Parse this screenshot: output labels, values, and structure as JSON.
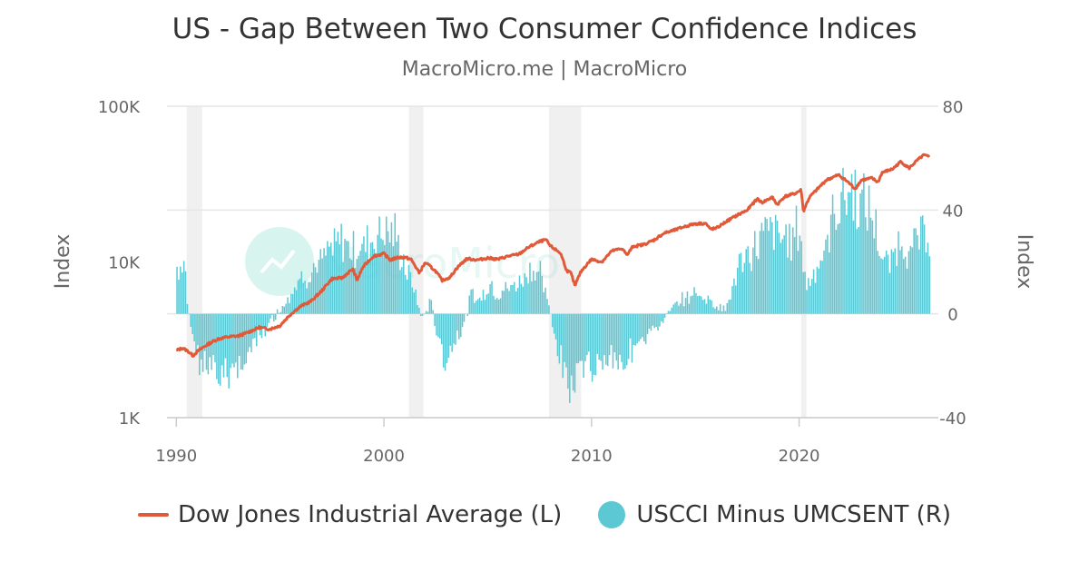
{
  "title": "US - Gap Between Two Consumer Confidence Indices",
  "subtitle": "MacroMicro.me | MacroMicro",
  "watermark": "MacroMicro",
  "colors": {
    "dow": "#e05a3a",
    "gap": "#5bc8d4",
    "recession": "#f0f0f0",
    "grid": "#e6e6e6"
  },
  "legend": [
    {
      "label": "Dow Jones Industrial Average (L)",
      "color": "#e05a3a",
      "marker": "line"
    },
    {
      "label": "USCCI Minus UMCSENT (R)",
      "color": "#5bc8d4",
      "marker": "circle"
    }
  ],
  "chart_data": {
    "type": "line+bar",
    "x_ticks": [
      "1990",
      "2000",
      "2010",
      "2020"
    ],
    "x_range": [
      1989.9,
      2026.4
    ],
    "left_axis": {
      "label": "Index",
      "scale": "log",
      "range": [
        1000,
        100000
      ],
      "ticks": [
        "1K",
        "10K",
        "100K"
      ],
      "tick_values": [
        1000,
        10000,
        100000
      ]
    },
    "right_axis": {
      "label": "Index",
      "range": [
        -40,
        80
      ],
      "ticks": [
        "-40",
        "0",
        "40",
        "80"
      ],
      "tick_values": [
        -40,
        0,
        40,
        80
      ]
    },
    "recessions": [
      [
        1990.5,
        1991.25
      ],
      [
        2001.2,
        2001.9
      ],
      [
        2007.95,
        2009.5
      ],
      [
        2020.1,
        2020.35
      ]
    ],
    "series": [
      {
        "name": "Dow Jones Industrial Average (L)",
        "axis": "left",
        "kind": "line",
        "points": [
          [
            1990.0,
            2700
          ],
          [
            1990.3,
            2800
          ],
          [
            1990.6,
            2650
          ],
          [
            1990.8,
            2500
          ],
          [
            1991.0,
            2650
          ],
          [
            1991.5,
            2950
          ],
          [
            1992.0,
            3200
          ],
          [
            1992.5,
            3300
          ],
          [
            1993.0,
            3350
          ],
          [
            1993.5,
            3550
          ],
          [
            1994.0,
            3800
          ],
          [
            1994.5,
            3700
          ],
          [
            1995.0,
            3900
          ],
          [
            1995.5,
            4600
          ],
          [
            1996.0,
            5200
          ],
          [
            1996.5,
            5600
          ],
          [
            1997.0,
            6500
          ],
          [
            1997.5,
            7800
          ],
          [
            1998.0,
            7900
          ],
          [
            1998.5,
            9000
          ],
          [
            1998.7,
            7600
          ],
          [
            1999.0,
            9300
          ],
          [
            1999.5,
            10900
          ],
          [
            2000.0,
            11300
          ],
          [
            2000.3,
            10300
          ],
          [
            2000.7,
            10700
          ],
          [
            2001.0,
            10700
          ],
          [
            2001.3,
            10400
          ],
          [
            2001.7,
            8500
          ],
          [
            2002.0,
            9900
          ],
          [
            2002.5,
            8700
          ],
          [
            2002.8,
            7600
          ],
          [
            2003.2,
            8000
          ],
          [
            2003.5,
            9100
          ],
          [
            2004.0,
            10500
          ],
          [
            2004.5,
            10300
          ],
          [
            2005.0,
            10600
          ],
          [
            2005.5,
            10400
          ],
          [
            2006.0,
            10900
          ],
          [
            2006.5,
            11200
          ],
          [
            2007.0,
            12500
          ],
          [
            2007.5,
            13500
          ],
          [
            2007.8,
            13900
          ],
          [
            2008.0,
            12700
          ],
          [
            2008.5,
            11400
          ],
          [
            2008.8,
            8800
          ],
          [
            2009.0,
            8500
          ],
          [
            2009.2,
            7000
          ],
          [
            2009.5,
            8700
          ],
          [
            2010.0,
            10400
          ],
          [
            2010.5,
            10000
          ],
          [
            2011.0,
            11800
          ],
          [
            2011.5,
            12200
          ],
          [
            2011.7,
            11000
          ],
          [
            2012.0,
            12600
          ],
          [
            2012.5,
            12900
          ],
          [
            2013.0,
            13800
          ],
          [
            2013.5,
            15300
          ],
          [
            2014.0,
            16000
          ],
          [
            2014.5,
            16900
          ],
          [
            2015.0,
            17600
          ],
          [
            2015.5,
            17700
          ],
          [
            2015.7,
            16300
          ],
          [
            2016.0,
            16400
          ],
          [
            2016.5,
            18200
          ],
          [
            2017.0,
            19900
          ],
          [
            2017.5,
            21500
          ],
          [
            2018.0,
            25500
          ],
          [
            2018.2,
            24000
          ],
          [
            2018.7,
            26000
          ],
          [
            2018.95,
            23300
          ],
          [
            2019.3,
            26300
          ],
          [
            2019.8,
            27500
          ],
          [
            2020.1,
            29000
          ],
          [
            2020.2,
            21000
          ],
          [
            2020.5,
            26000
          ],
          [
            2020.9,
            29500
          ],
          [
            2021.3,
            33500
          ],
          [
            2021.9,
            36200
          ],
          [
            2022.3,
            33000
          ],
          [
            2022.7,
            29500
          ],
          [
            2023.0,
            33500
          ],
          [
            2023.5,
            34500
          ],
          [
            2023.8,
            32500
          ],
          [
            2024.0,
            37500
          ],
          [
            2024.5,
            39500
          ],
          [
            2024.9,
            44000
          ],
          [
            2025.3,
            40000
          ],
          [
            2025.7,
            45000
          ],
          [
            2026.0,
            48500
          ],
          [
            2026.3,
            47000
          ]
        ]
      },
      {
        "name": "USCCI Minus UMCSENT (R)",
        "axis": "right",
        "kind": "bar",
        "points": [
          [
            1990.0,
            18
          ],
          [
            1990.4,
            20
          ],
          [
            1990.5,
            5
          ],
          [
            1990.8,
            -10
          ],
          [
            1991.1,
            -18
          ],
          [
            1991.5,
            -22
          ],
          [
            1992.0,
            -25
          ],
          [
            1992.5,
            -22
          ],
          [
            1993.0,
            -20
          ],
          [
            1993.5,
            -15
          ],
          [
            1994.0,
            -10
          ],
          [
            1994.4,
            -4
          ],
          [
            1994.8,
            0
          ],
          [
            1995.2,
            5
          ],
          [
            1995.6,
            10
          ],
          [
            1996.0,
            14
          ],
          [
            1996.5,
            17
          ],
          [
            1997.0,
            20
          ],
          [
            1997.5,
            25
          ],
          [
            1998.0,
            28
          ],
          [
            1998.5,
            25
          ],
          [
            1999.0,
            26
          ],
          [
            1999.5,
            30
          ],
          [
            2000.0,
            33
          ],
          [
            2000.5,
            30
          ],
          [
            2001.0,
            18
          ],
          [
            2001.4,
            10
          ],
          [
            2001.8,
            -2
          ],
          [
            2002.2,
            5
          ],
          [
            2002.6,
            -10
          ],
          [
            2002.9,
            -20
          ],
          [
            2003.3,
            -12
          ],
          [
            2003.8,
            -5
          ],
          [
            2004.2,
            8
          ],
          [
            2004.6,
            5
          ],
          [
            2005.0,
            12
          ],
          [
            2005.5,
            8
          ],
          [
            2006.0,
            10
          ],
          [
            2006.5,
            12
          ],
          [
            2007.0,
            18
          ],
          [
            2007.5,
            15
          ],
          [
            2007.9,
            3
          ],
          [
            2008.3,
            -15
          ],
          [
            2008.7,
            -25
          ],
          [
            2009.0,
            -28
          ],
          [
            2009.5,
            -22
          ],
          [
            2010.0,
            -20
          ],
          [
            2010.5,
            -18
          ],
          [
            2011.0,
            -15
          ],
          [
            2011.5,
            -20
          ],
          [
            2012.0,
            -12
          ],
          [
            2012.5,
            -10
          ],
          [
            2013.0,
            -6
          ],
          [
            2013.5,
            -2
          ],
          [
            2014.0,
            3
          ],
          [
            2014.5,
            6
          ],
          [
            2015.0,
            8
          ],
          [
            2015.5,
            6
          ],
          [
            2016.0,
            4
          ],
          [
            2016.3,
            1
          ],
          [
            2016.7,
            8
          ],
          [
            2017.0,
            18
          ],
          [
            2017.5,
            22
          ],
          [
            2018.0,
            28
          ],
          [
            2018.5,
            32
          ],
          [
            2019.0,
            30
          ],
          [
            2019.5,
            28
          ],
          [
            2020.0,
            34
          ],
          [
            2020.3,
            10
          ],
          [
            2020.7,
            18
          ],
          [
            2021.0,
            20
          ],
          [
            2021.3,
            25
          ],
          [
            2021.6,
            38
          ],
          [
            2022.0,
            45
          ],
          [
            2022.5,
            48
          ],
          [
            2023.0,
            42
          ],
          [
            2023.5,
            38
          ],
          [
            2023.8,
            28
          ],
          [
            2024.0,
            20
          ],
          [
            2024.3,
            18
          ],
          [
            2024.6,
            25
          ],
          [
            2025.0,
            30
          ],
          [
            2025.3,
            22
          ],
          [
            2025.6,
            28
          ],
          [
            2026.0,
            30
          ],
          [
            2026.3,
            32
          ]
        ]
      }
    ]
  }
}
